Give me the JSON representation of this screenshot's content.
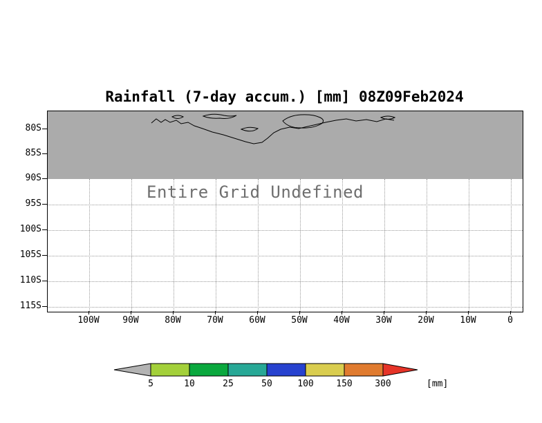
{
  "title": "Rainfall (7-day accum.) [mm] 08Z09Feb2024",
  "plot": {
    "undefined_text": "Entire Grid Undefined",
    "y_ticks": [
      "80S",
      "85S",
      "90S",
      "95S",
      "100S",
      "105S",
      "110S",
      "115S"
    ],
    "x_ticks": [
      "100W",
      "90W",
      "80W",
      "70W",
      "60W",
      "50W",
      "40W",
      "30W",
      "20W",
      "10W",
      "0"
    ],
    "shading_color": "#ababab",
    "grid_color": "#999999"
  },
  "colorbar": {
    "levels": [
      "5",
      "10",
      "25",
      "50",
      "100",
      "150",
      "300"
    ],
    "unit_label": "[mm]",
    "colors": [
      "#b3b3b3",
      "#a3d03a",
      "#0aa83e",
      "#27a896",
      "#2742cf",
      "#d9cd4f",
      "#e07b2f",
      "#e63428"
    ]
  },
  "chart_data": {
    "type": "heatmap",
    "title": "Rainfall (7-day accum.) [mm] 08Z09Feb2024",
    "x_tick_labels": [
      "100W",
      "90W",
      "80W",
      "70W",
      "60W",
      "50W",
      "40W",
      "30W",
      "20W",
      "10W",
      "0"
    ],
    "y_tick_labels": [
      "80S",
      "85S",
      "90S",
      "95S",
      "100S",
      "105S",
      "110S",
      "115S"
    ],
    "values": null,
    "data_status": "Entire Grid Undefined",
    "annotation": "Entire Grid Undefined",
    "grid": true,
    "legend_position": "bottom",
    "colorbar_levels": [
      5,
      10,
      25,
      50,
      100,
      150,
      300
    ],
    "colorbar_unit": "[mm]",
    "colorbar_colors": [
      "#b3b3b3",
      "#a3d03a",
      "#0aa83e",
      "#27a896",
      "#2742cf",
      "#d9cd4f",
      "#e07b2f",
      "#e63428"
    ],
    "notes": "Latitude band above 90S shaded gray with black coastline contour; all rainfall grid values undefined"
  }
}
